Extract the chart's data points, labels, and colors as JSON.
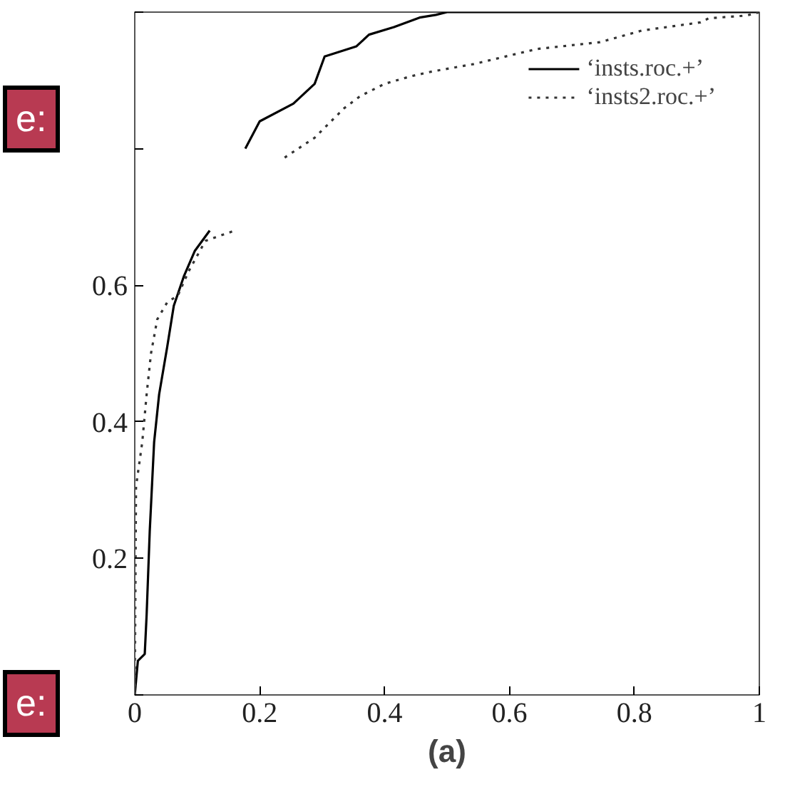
{
  "chart_data": {
    "type": "line",
    "xlabel": "(a)",
    "x": [
      0,
      0.005,
      0.016,
      0.019,
      0.024,
      0.031,
      0.039,
      0.052,
      0.0625,
      0.079,
      0.096,
      0.12,
      null,
      0.177,
      0.2,
      0.254,
      0.288,
      0.304,
      0.355,
      0.375,
      0.415,
      0.456,
      0.482,
      0.5,
      1
    ],
    "series": [
      {
        "name": "‘insts.roc.+’",
        "color": "#000000",
        "line_style": "solid",
        "values": [
          0,
          0.05,
          0.06,
          0.117,
          0.24,
          0.37,
          0.44,
          0.51,
          0.57,
          0.614,
          0.65,
          0.68,
          null,
          0.8,
          0.84,
          0.866,
          0.895,
          0.935,
          0.95,
          0.967,
          0.978,
          0.992,
          0.996,
          1,
          1
        ]
      },
      {
        "name": "‘insts2.roc.+’",
        "color": "#333333",
        "line_style": "dotted",
        "x": [
          0,
          0.002,
          0.012,
          0.019,
          0.026,
          0.036,
          0.052,
          0.069,
          0.086,
          0.113,
          0.16,
          null,
          0.24,
          0.288,
          0.335,
          0.361,
          0.4,
          0.442,
          0.476,
          0.543,
          0.644,
          0.745,
          0.812,
          0.906,
          0.919,
          0.98,
          1
        ],
        "values": [
          0,
          0.305,
          0.37,
          0.44,
          0.5,
          0.55,
          0.575,
          0.585,
          0.62,
          0.665,
          0.68,
          null,
          0.787,
          0.816,
          0.859,
          0.877,
          0.895,
          0.906,
          0.913,
          0.924,
          0.946,
          0.956,
          0.973,
          0.985,
          0.991,
          0.995,
          1
        ]
      }
    ],
    "xlim": [
      0,
      1
    ],
    "ylim": [
      0,
      1
    ],
    "xticks": [
      0,
      0.2,
      0.4,
      0.6,
      0.8,
      1
    ],
    "yticks": [
      {
        "value": 0,
        "label": null
      },
      0.2,
      0.4,
      0.6,
      {
        "value": 0.8,
        "label": null
      },
      {
        "value": 1,
        "label": null
      }
    ],
    "grid": false,
    "legend": "top right",
    "marker": "none",
    "annotations": [
      "e:",
      "e:"
    ]
  }
}
